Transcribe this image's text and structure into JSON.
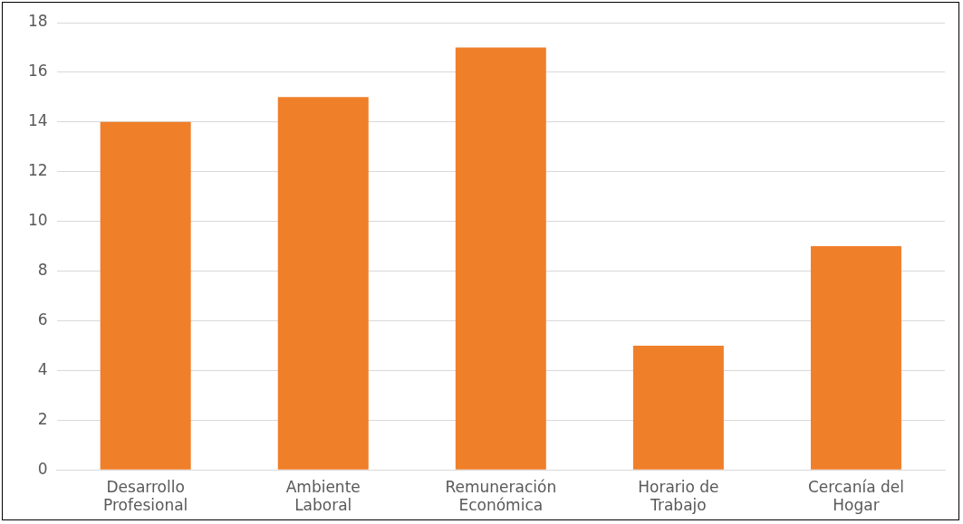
{
  "chart_data": {
    "type": "bar",
    "categories": [
      "Desarrollo\nProfesional",
      "Ambiente\nLaboral",
      "Remuneración\nEconómica",
      "Horario de\nTrabajo",
      "Cercanía del\nHogar"
    ],
    "values": [
      14,
      15,
      17,
      5,
      9
    ],
    "color": "#f07f2a",
    "ylim": [
      0,
      18
    ],
    "yticks": [
      0,
      2,
      4,
      6,
      8,
      10,
      12,
      14,
      16,
      18
    ],
    "grid": "y",
    "legend": false
  }
}
